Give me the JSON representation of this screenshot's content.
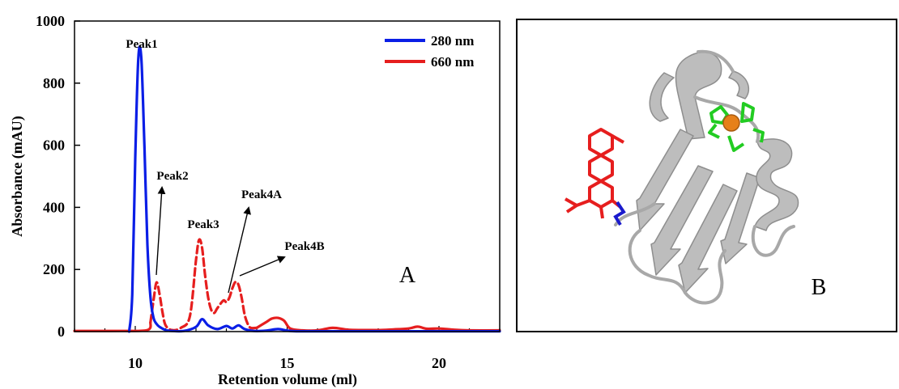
{
  "colors": {
    "blue": "#0a1ee6",
    "red": "#e61e1e",
    "gray": "#b4b4b4",
    "green": "#22cc22",
    "orange": "#e6801a",
    "navy": "#1a1acc"
  },
  "chart_data": {
    "type": "line",
    "xlabel": "Retention volume (ml)",
    "ylabel": "Absorbance (mAU)",
    "xlim": [
      8,
      22
    ],
    "ylim": [
      0,
      1000
    ],
    "x_ticks": [
      10,
      15,
      20
    ],
    "y_ticks": [
      0,
      200,
      400,
      600,
      800,
      1000
    ],
    "legend_position": "top-right",
    "grid": false,
    "series": [
      {
        "name": "280 nm",
        "color": "#0a1ee6",
        "style": "solid",
        "x": [
          9.8,
          9.9,
          10.0,
          10.1,
          10.2,
          10.3,
          10.4,
          10.5,
          10.6,
          10.7,
          10.8,
          11.0,
          11.2,
          11.6,
          12.0,
          12.2,
          12.4,
          12.7,
          13.0,
          13.2,
          13.4,
          13.6,
          13.9,
          14.3,
          14.7,
          15.0,
          15.3,
          16.0,
          18.0,
          22.0
        ],
        "y": [
          0,
          120,
          560,
          880,
          880,
          600,
          280,
          110,
          45,
          25,
          15,
          5,
          2,
          2,
          15,
          40,
          20,
          8,
          18,
          10,
          20,
          8,
          2,
          3,
          8,
          3,
          1,
          1,
          1,
          1
        ]
      },
      {
        "name": "660 nm",
        "color": "#e61e1e",
        "style": "mixed",
        "x": [
          8.0,
          9.5,
          10.4,
          10.5,
          10.6,
          10.7,
          10.8,
          10.9,
          11.0,
          11.2,
          11.5,
          11.8,
          12.0,
          12.1,
          12.2,
          12.3,
          12.4,
          12.5,
          12.6,
          12.7,
          12.9,
          13.0,
          13.1,
          13.2,
          13.3,
          13.4,
          13.5,
          13.6,
          13.7,
          13.8,
          14.0,
          14.3,
          14.5,
          14.7,
          14.9,
          15.1,
          15.5,
          16.0,
          16.5,
          17.0,
          17.5,
          18.0,
          18.5,
          19.0,
          19.3,
          19.6,
          20.0,
          20.5,
          21.0,
          22.0
        ],
        "y": [
          2,
          2,
          5,
          30,
          100,
          158,
          120,
          60,
          20,
          5,
          12,
          50,
          230,
          295,
          270,
          180,
          110,
          70,
          60,
          75,
          100,
          95,
          110,
          140,
          160,
          150,
          110,
          55,
          25,
          12,
          12,
          30,
          42,
          44,
          35,
          10,
          4,
          4,
          12,
          6,
          5,
          5,
          7,
          10,
          16,
          9,
          10,
          6,
          4,
          4
        ]
      }
    ],
    "annotations": [
      "Peak1",
      "Peak2",
      "Peak3",
      "Peak4A",
      "Peak4B"
    ],
    "panel_labels": [
      "A",
      "B"
    ]
  }
}
